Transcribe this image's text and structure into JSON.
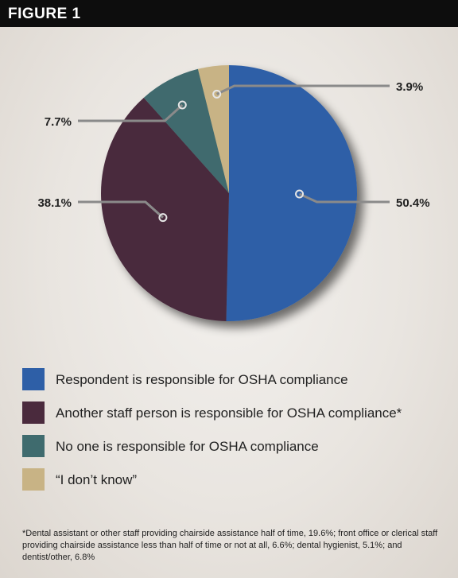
{
  "header": {
    "title": "FIGURE 1"
  },
  "colors": {
    "responsible_self": "#2e5fa7",
    "another_staff": "#4a2a3d",
    "no_one": "#3f6b6e",
    "dont_know": "#c8b385",
    "leader_line": "#8a8a8a"
  },
  "chart_data": {
    "type": "pie",
    "title": "",
    "slices": [
      {
        "label": "Respondent is responsible for OSHA compliance",
        "value": 50.4,
        "display": "50.4%",
        "color": "#2e5fa7"
      },
      {
        "label": "Another staff person is responsible for OSHA compliance*",
        "value": 38.1,
        "display": "38.1%",
        "color": "#4a2a3d"
      },
      {
        "label": "No one is responsible for OSHA compliance",
        "value": 7.7,
        "display": "7.7%",
        "color": "#3f6b6e"
      },
      {
        "label": "“I don’t know”",
        "value": 3.9,
        "display": "3.9%",
        "color": "#c8b385"
      }
    ],
    "start_angle": "12 o'clock",
    "direction": "clockwise",
    "legend_position": "bottom"
  },
  "legend": {
    "items": [
      {
        "label": "Respondent is responsible for OSHA compliance",
        "color": "#2e5fa7"
      },
      {
        "label": "Another staff person is responsible for OSHA compliance*",
        "color": "#4a2a3d"
      },
      {
        "label": "No one is responsible for OSHA compliance",
        "color": "#3f6b6e"
      },
      {
        "label": "“I don’t know”",
        "color": "#c8b385"
      }
    ]
  },
  "footnote": "*Dental assistant or other staff providing chairside assistance half of time, 19.6%; front office or clerical staff providing chairside assistance less than half of time or not at all, 6.6%; dental hygienist, 5.1%; and dentist/other, 6.8%"
}
